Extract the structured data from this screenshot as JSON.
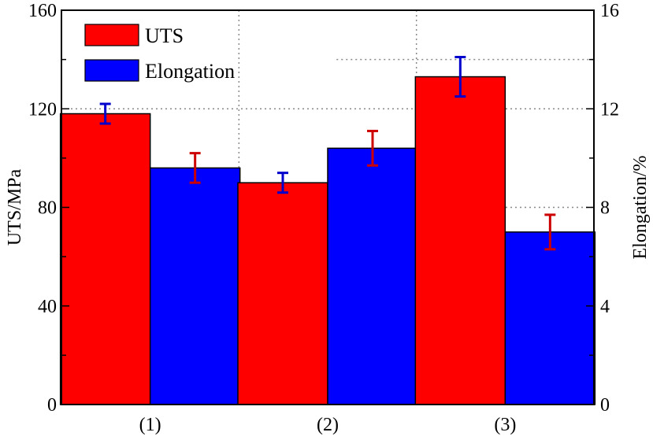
{
  "chart_data": {
    "type": "bar",
    "categories": [
      "(1)",
      "(2)",
      "(3)"
    ],
    "y_left": {
      "label": "UTS/MPa",
      "range": [
        0,
        160
      ],
      "ticks": [
        0,
        40,
        80,
        120,
        160
      ]
    },
    "y_right": {
      "label": "Elongation/%",
      "range": [
        0,
        16
      ],
      "ticks": [
        0,
        4,
        8,
        12,
        16
      ]
    },
    "series": [
      {
        "name": "UTS",
        "axis": "left",
        "color": "#ff0000",
        "error_color": "#0000cc",
        "values": [
          118,
          90,
          133
        ],
        "errors": [
          4,
          4,
          8
        ]
      },
      {
        "name": "Elongation",
        "axis": "right",
        "color": "#0000ff",
        "error_color": "#cc0000",
        "values": [
          9.6,
          10.4,
          7.0
        ],
        "errors": [
          0.6,
          0.7,
          0.7
        ]
      }
    ],
    "grid": "dotted",
    "legend_position": "top-left"
  }
}
